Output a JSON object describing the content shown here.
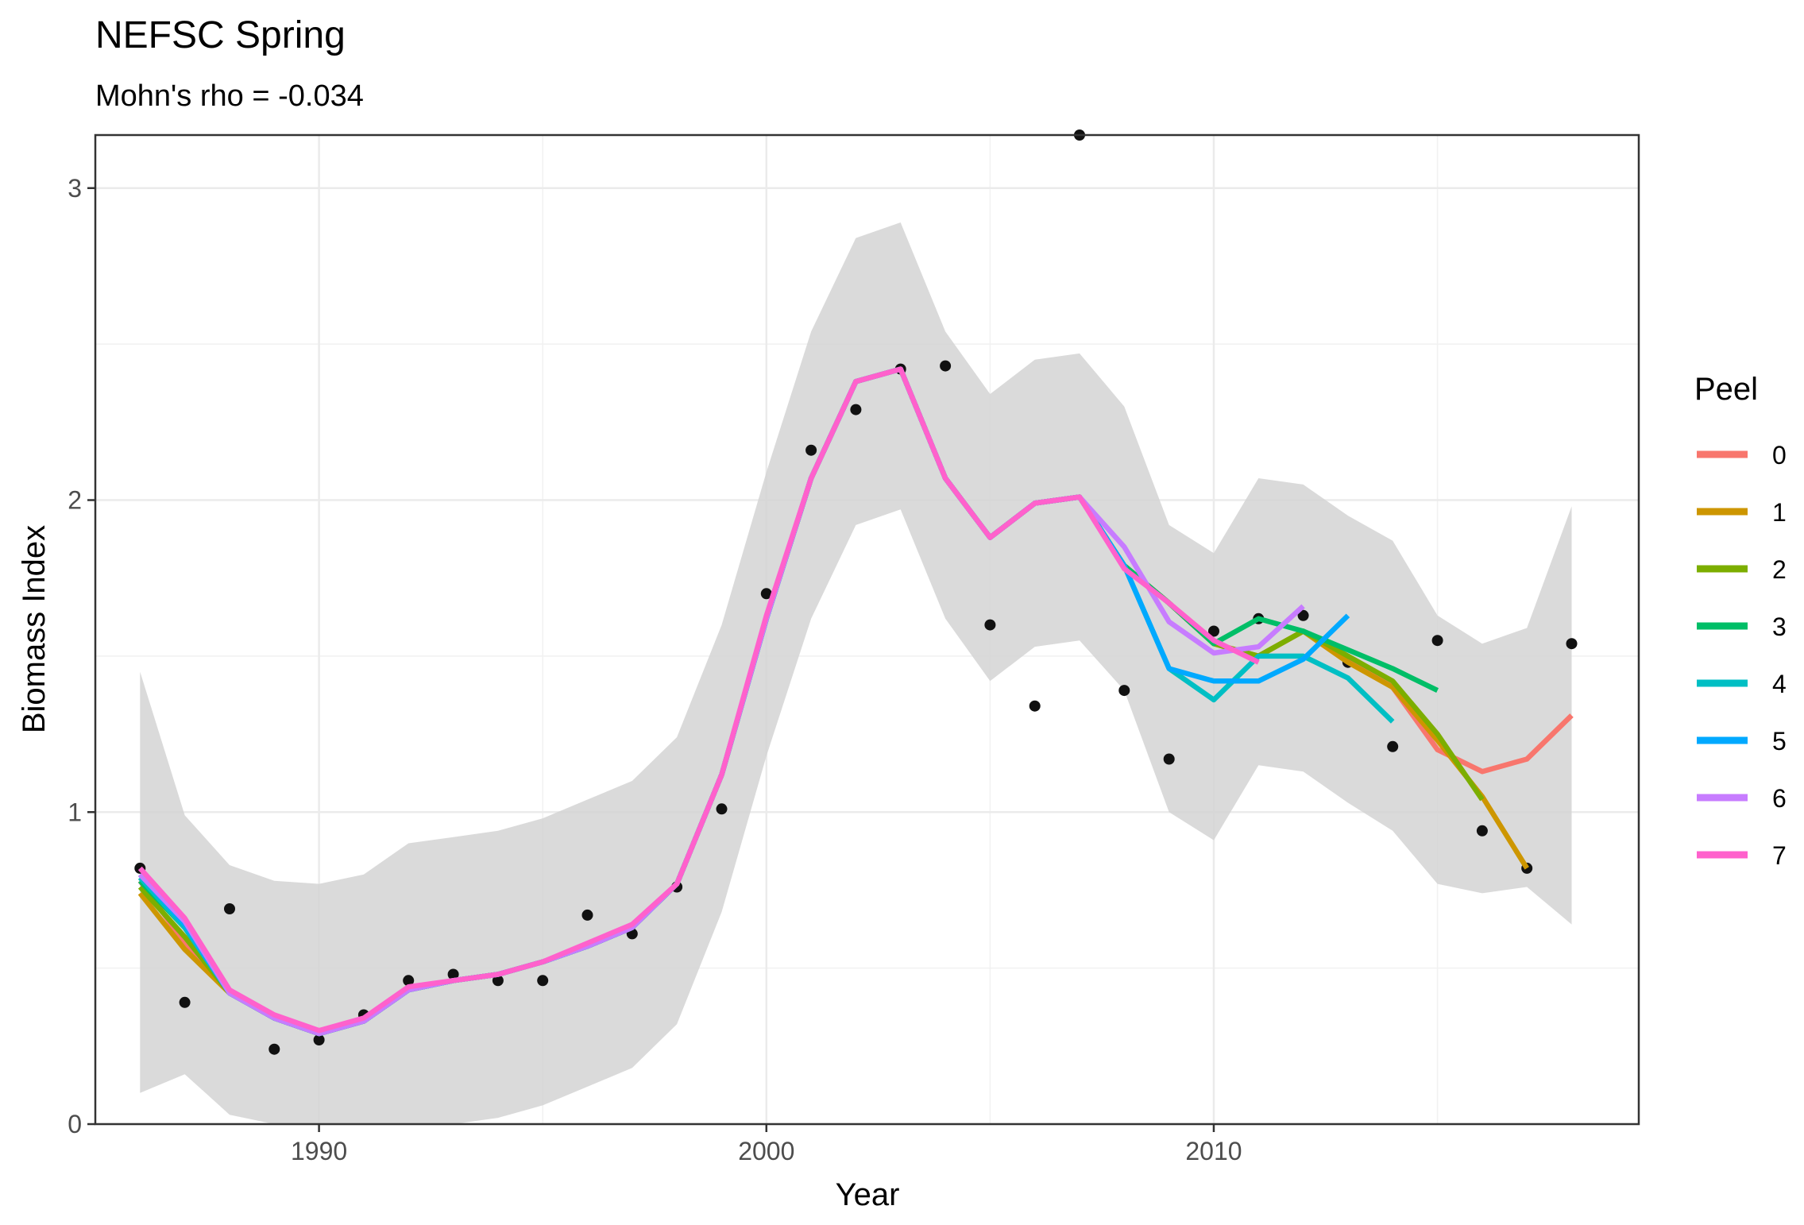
{
  "chart_data": {
    "type": "line",
    "title": "NEFSC Spring",
    "subtitle": "Mohn's rho = -0.034",
    "xlabel": "Year",
    "ylabel": "Biomass Index",
    "xlim": [
      1985,
      2019.5
    ],
    "ylim": [
      0,
      3.17
    ],
    "x_ticks": [
      1990,
      2000,
      2010
    ],
    "x_tick_labels": [
      "1990",
      "2000",
      "2010"
    ],
    "y_ticks": [
      0,
      1,
      2,
      3
    ],
    "y_tick_labels": [
      "0",
      "1",
      "2",
      "3"
    ],
    "grid": true,
    "legend_title": "Peel",
    "legend_position": "right",
    "band": {
      "x": [
        1986,
        1987,
        1988,
        1989,
        1990,
        1991,
        1992,
        1993,
        1994,
        1995,
        1996,
        1997,
        1998,
        1999,
        2000,
        2001,
        2002,
        2003,
        2004,
        2005,
        2006,
        2007,
        2008,
        2009,
        2010,
        2011,
        2012,
        2013,
        2014,
        2015,
        2016,
        2017,
        2018
      ],
      "lower": [
        0.1,
        0.16,
        0.03,
        0.0,
        0.0,
        0.0,
        0.0,
        0.0,
        0.02,
        0.06,
        0.12,
        0.18,
        0.32,
        0.68,
        1.18,
        1.62,
        1.92,
        1.97,
        1.62,
        1.42,
        1.53,
        1.55,
        1.39,
        1.0,
        0.91,
        1.15,
        1.13,
        1.03,
        0.94,
        0.77,
        0.74,
        0.76,
        0.64
      ],
      "upper": [
        1.45,
        0.99,
        0.83,
        0.78,
        0.77,
        0.8,
        0.9,
        0.92,
        0.94,
        0.98,
        1.04,
        1.1,
        1.24,
        1.6,
        2.09,
        2.54,
        2.84,
        2.89,
        2.54,
        2.34,
        2.45,
        2.47,
        2.3,
        1.92,
        1.83,
        2.07,
        2.05,
        1.95,
        1.87,
        1.63,
        1.54,
        1.59,
        1.98
      ]
    },
    "observed": {
      "x": [
        1986,
        1987,
        1988,
        1989,
        1990,
        1991,
        1992,
        1993,
        1994,
        1995,
        1996,
        1997,
        1998,
        1999,
        2000,
        2001,
        2002,
        2003,
        2004,
        2005,
        2006,
        2007,
        2008,
        2009,
        2010,
        2011,
        2012,
        2013,
        2014,
        2015,
        2016,
        2017,
        2018
      ],
      "y": [
        0.82,
        0.39,
        0.69,
        0.24,
        0.27,
        0.35,
        0.46,
        0.48,
        0.46,
        0.46,
        0.67,
        0.61,
        0.76,
        1.01,
        1.7,
        2.16,
        2.29,
        2.42,
        2.43,
        1.6,
        1.34,
        3.17,
        1.39,
        1.17,
        1.58,
        1.62,
        1.63,
        1.48,
        1.21,
        1.55,
        0.94,
        0.82,
        1.54
      ]
    },
    "series": [
      {
        "name": "0",
        "color": "#F8766D",
        "x": [
          1986,
          1987,
          1988,
          1989,
          1990,
          1991,
          1992,
          1993,
          1994,
          1995,
          1996,
          1997,
          1998,
          1999,
          2000,
          2001,
          2002,
          2003,
          2004,
          2005,
          2006,
          2007,
          2008,
          2009,
          2010,
          2011,
          2012,
          2013,
          2014,
          2015,
          2016,
          2017,
          2018
        ],
        "y": [
          0.78,
          0.58,
          0.42,
          0.34,
          0.29,
          0.33,
          0.43,
          0.46,
          0.48,
          0.52,
          0.57,
          0.63,
          0.77,
          1.12,
          1.62,
          2.07,
          2.38,
          2.42,
          2.07,
          1.88,
          1.99,
          2.01,
          1.79,
          1.67,
          1.54,
          1.5,
          1.58,
          1.5,
          1.4,
          1.2,
          1.13,
          1.17,
          1.31
        ]
      },
      {
        "name": "1",
        "color": "#CD9600",
        "x": [
          1986,
          1987,
          1988,
          1989,
          1990,
          1991,
          1992,
          1993,
          1994,
          1995,
          1996,
          1997,
          1998,
          1999,
          2000,
          2001,
          2002,
          2003,
          2004,
          2005,
          2006,
          2007,
          2008,
          2009,
          2010,
          2011,
          2012,
          2013,
          2014,
          2015,
          2016,
          2017
        ],
        "y": [
          0.74,
          0.56,
          0.42,
          0.34,
          0.29,
          0.33,
          0.43,
          0.46,
          0.48,
          0.52,
          0.57,
          0.63,
          0.77,
          1.12,
          1.62,
          2.07,
          2.38,
          2.42,
          2.07,
          1.88,
          1.99,
          2.01,
          1.79,
          1.67,
          1.54,
          1.5,
          1.58,
          1.48,
          1.4,
          1.23,
          1.05,
          0.82
        ]
      },
      {
        "name": "2",
        "color": "#7CAE00",
        "x": [
          1986,
          1987,
          1988,
          1989,
          1990,
          1991,
          1992,
          1993,
          1994,
          1995,
          1996,
          1997,
          1998,
          1999,
          2000,
          2001,
          2002,
          2003,
          2004,
          2005,
          2006,
          2007,
          2008,
          2009,
          2010,
          2011,
          2012,
          2013,
          2014,
          2015,
          2016
        ],
        "y": [
          0.76,
          0.6,
          0.42,
          0.34,
          0.29,
          0.33,
          0.43,
          0.46,
          0.48,
          0.52,
          0.57,
          0.63,
          0.77,
          1.12,
          1.62,
          2.07,
          2.38,
          2.42,
          2.07,
          1.88,
          1.99,
          2.01,
          1.79,
          1.67,
          1.54,
          1.5,
          1.58,
          1.5,
          1.42,
          1.25,
          1.04
        ]
      },
      {
        "name": "3",
        "color": "#00BE67",
        "x": [
          1986,
          1987,
          1988,
          1989,
          1990,
          1991,
          1992,
          1993,
          1994,
          1995,
          1996,
          1997,
          1998,
          1999,
          2000,
          2001,
          2002,
          2003,
          2004,
          2005,
          2006,
          2007,
          2008,
          2009,
          2010,
          2011,
          2012,
          2013,
          2014,
          2015
        ],
        "y": [
          0.78,
          0.63,
          0.42,
          0.34,
          0.29,
          0.33,
          0.43,
          0.46,
          0.48,
          0.52,
          0.57,
          0.63,
          0.77,
          1.12,
          1.62,
          2.07,
          2.38,
          2.42,
          2.07,
          1.88,
          1.99,
          2.01,
          1.79,
          1.67,
          1.54,
          1.62,
          1.58,
          1.52,
          1.46,
          1.39
        ]
      },
      {
        "name": "4",
        "color": "#00BFC4",
        "x": [
          1986,
          1987,
          1988,
          1989,
          1990,
          1991,
          1992,
          1993,
          1994,
          1995,
          1996,
          1997,
          1998,
          1999,
          2000,
          2001,
          2002,
          2003,
          2004,
          2005,
          2006,
          2007,
          2008,
          2009,
          2010,
          2011,
          2012,
          2013,
          2014
        ],
        "y": [
          0.79,
          0.63,
          0.42,
          0.34,
          0.29,
          0.33,
          0.43,
          0.46,
          0.48,
          0.52,
          0.57,
          0.63,
          0.77,
          1.12,
          1.62,
          2.07,
          2.38,
          2.42,
          2.07,
          1.88,
          1.99,
          2.01,
          1.79,
          1.46,
          1.36,
          1.5,
          1.5,
          1.43,
          1.29
        ]
      },
      {
        "name": "5",
        "color": "#00A9FF",
        "x": [
          1986,
          1987,
          1988,
          1989,
          1990,
          1991,
          1992,
          1993,
          1994,
          1995,
          1996,
          1997,
          1998,
          1999,
          2000,
          2001,
          2002,
          2003,
          2004,
          2005,
          2006,
          2007,
          2008,
          2009,
          2010,
          2011,
          2012,
          2013
        ],
        "y": [
          0.8,
          0.64,
          0.42,
          0.34,
          0.29,
          0.33,
          0.43,
          0.46,
          0.48,
          0.52,
          0.57,
          0.63,
          0.77,
          1.12,
          1.62,
          2.07,
          2.38,
          2.42,
          2.07,
          1.88,
          1.99,
          2.01,
          1.79,
          1.46,
          1.42,
          1.42,
          1.49,
          1.63
        ]
      },
      {
        "name": "6",
        "color": "#C77CFF",
        "x": [
          1986,
          1987,
          1988,
          1989,
          1990,
          1991,
          1992,
          1993,
          1994,
          1995,
          1996,
          1997,
          1998,
          1999,
          2000,
          2001,
          2002,
          2003,
          2004,
          2005,
          2006,
          2007,
          2008,
          2009,
          2010,
          2011,
          2012
        ],
        "y": [
          0.8,
          0.65,
          0.42,
          0.34,
          0.29,
          0.33,
          0.43,
          0.46,
          0.48,
          0.52,
          0.57,
          0.63,
          0.77,
          1.12,
          1.62,
          2.07,
          2.38,
          2.42,
          2.07,
          1.88,
          1.99,
          2.01,
          1.85,
          1.61,
          1.51,
          1.53,
          1.66
        ]
      },
      {
        "name": "7",
        "color": "#FF61CC",
        "x": [
          1986,
          1987,
          1988,
          1989,
          1990,
          1991,
          1992,
          1993,
          1994,
          1995,
          1996,
          1997,
          1998,
          1999,
          2000,
          2001,
          2002,
          2003,
          2004,
          2005,
          2006,
          2007,
          2008,
          2009,
          2010,
          2011
        ],
        "y": [
          0.82,
          0.66,
          0.43,
          0.35,
          0.3,
          0.34,
          0.44,
          0.46,
          0.48,
          0.52,
          0.58,
          0.64,
          0.77,
          1.12,
          1.63,
          2.07,
          2.38,
          2.42,
          2.07,
          1.88,
          1.99,
          2.01,
          1.78,
          1.67,
          1.55,
          1.48
        ]
      }
    ]
  }
}
